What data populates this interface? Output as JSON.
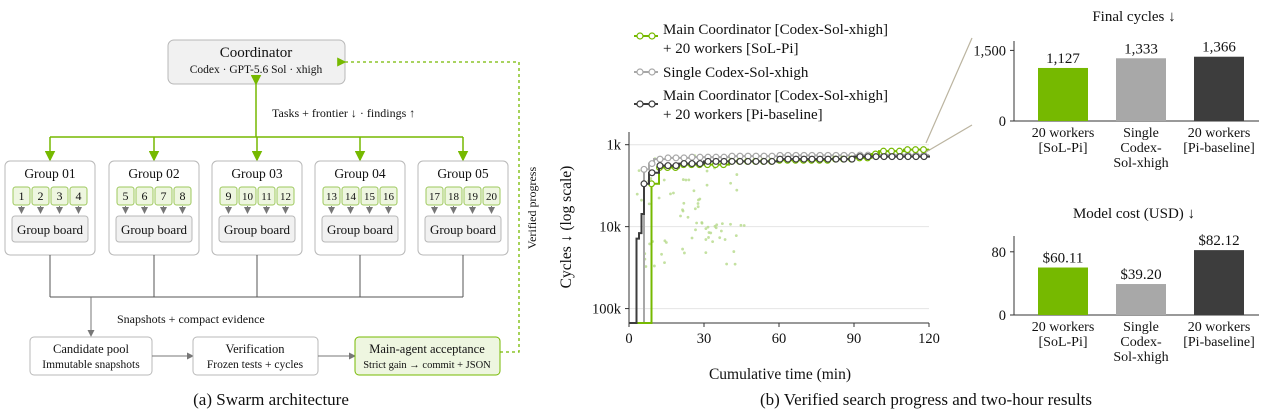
{
  "colors": {
    "green": "#76b900",
    "green_light": "#eef6e0",
    "box_gray": "#f1f1f1",
    "box_stroke": "#b8b8b8",
    "single": "#a8a8a8",
    "baseline": "#3d3d3d",
    "scatter": "#b5d98a"
  },
  "architecture": {
    "coordinator": {
      "title": "Coordinator",
      "subtitle": "Codex · GPT-5.6 Sol · xhigh"
    },
    "tasks_label": "Tasks + frontier ↓ · findings ↑",
    "verified_progress": "Verified progress",
    "groups": [
      {
        "label": "Group 01",
        "workers": [
          "1",
          "2",
          "3",
          "4"
        ],
        "board": "Group board"
      },
      {
        "label": "Group 02",
        "workers": [
          "5",
          "6",
          "7",
          "8"
        ],
        "board": "Group board"
      },
      {
        "label": "Group 03",
        "workers": [
          "9",
          "10",
          "11",
          "12"
        ],
        "board": "Group board"
      },
      {
        "label": "Group 04",
        "workers": [
          "13",
          "14",
          "15",
          "16"
        ],
        "board": "Group board"
      },
      {
        "label": "Group 05",
        "workers": [
          "17",
          "18",
          "19",
          "20"
        ],
        "board": "Group board"
      }
    ],
    "snapshots_label": "Snapshots + compact evidence",
    "candidate_pool": {
      "title": "Candidate pool",
      "subtitle": "Immutable snapshots"
    },
    "verification": {
      "title": "Verification",
      "subtitle": "Frozen tests + cycles"
    },
    "acceptance": {
      "title": "Main-agent acceptance",
      "subtitle": "Strict gain → commit + JSON"
    },
    "caption": "(a) Swarm architecture"
  },
  "progress_chart": {
    "legend": [
      {
        "line1": "Main Coordinator [Codex-Sol-xhigh]",
        "line2": "+ 20 workers [SoL-Pi]"
      },
      {
        "line1": "Single Codex-Sol-xhigh",
        "line2": ""
      },
      {
        "line1": "Main Coordinator [Codex-Sol-xhigh]",
        "line2": "+ 20 workers [Pi-baseline]"
      }
    ],
    "ylabel": "Cycles ↓ (log scale)",
    "xlabel": "Cumulative time (min)",
    "xticks": [
      "0",
      "30",
      "60",
      "90",
      "120"
    ],
    "yticks": [
      "1k",
      "10k",
      "100k"
    ],
    "caption": "(b) Verified search progress and two-hour results"
  },
  "final_cycles": {
    "title": "Final cycles ↓",
    "yticks": [
      "0",
      "1,500"
    ],
    "ylim": [
      0,
      1700
    ],
    "categories": [
      "20 workers\n[SoL-Pi]",
      "Single\nCodex-\nSol-xhigh",
      "20 workers\n[Pi-baseline]"
    ],
    "values": [
      1127,
      1333,
      1366
    ],
    "labels": [
      "1,127",
      "1,333",
      "1,366"
    ]
  },
  "model_cost": {
    "title": "Model cost (USD) ↓",
    "yticks": [
      "0",
      "80"
    ],
    "ylim": [
      0,
      100
    ],
    "categories": [
      "20 workers\n[SoL-Pi]",
      "Single\nCodex-\nSol-xhigh",
      "20 workers\n[Pi-baseline]"
    ],
    "values": [
      60.11,
      39.2,
      82.12
    ],
    "labels": [
      "$60.11",
      "$39.20",
      "$82.12"
    ]
  },
  "chart_data": [
    {
      "type": "line",
      "xlabel": "Cumulative time (min)",
      "ylabel": "Cycles ↓ (log scale)",
      "xlim": [
        0,
        120
      ],
      "ylim": [
        150000,
        700
      ],
      "log_y": true,
      "series": [
        {
          "name": "Main Coordinator [Codex-Sol-xhigh] + 20 workers [SoL-Pi]",
          "x": [
            0,
            9,
            9,
            12,
            20,
            40,
            60,
            80,
            90,
            97,
            100,
            110,
            120
          ],
          "y": [
            150000,
            150000,
            3000,
            1900,
            1750,
            1600,
            1550,
            1500,
            1450,
            1300,
            1200,
            1150,
            1127
          ]
        },
        {
          "name": "Single Codex-Sol-xhigh",
          "x": [
            0,
            6,
            6,
            8,
            10,
            15,
            25,
            40,
            60,
            90,
            120
          ],
          "y": [
            150000,
            150000,
            2000,
            1700,
            1500,
            1450,
            1420,
            1380,
            1350,
            1340,
            1333
          ]
        },
        {
          "name": "Main Coordinator [Codex-Sol-xhigh] + 20 workers [Pi-baseline]",
          "x": [
            0,
            2,
            3,
            4,
            5,
            6,
            8,
            12,
            20,
            30,
            60,
            90,
            120
          ],
          "y": [
            150000,
            150000,
            14000,
            12000,
            7000,
            3000,
            2200,
            1800,
            1700,
            1600,
            1500,
            1400,
            1366
          ]
        }
      ]
    },
    {
      "type": "bar",
      "title": "Final cycles ↓",
      "categories": [
        "20 workers [SoL-Pi]",
        "Single Codex-Sol-xhigh",
        "20 workers [Pi-baseline]"
      ],
      "values": [
        1127,
        1333,
        1366
      ],
      "ylim": [
        0,
        1700
      ]
    },
    {
      "type": "bar",
      "title": "Model cost (USD) ↓",
      "categories": [
        "20 workers [SoL-Pi]",
        "Single Codex-Sol-xhigh",
        "20 workers [Pi-baseline]"
      ],
      "values": [
        60.11,
        39.2,
        82.12
      ],
      "ylim": [
        0,
        100
      ]
    }
  ]
}
